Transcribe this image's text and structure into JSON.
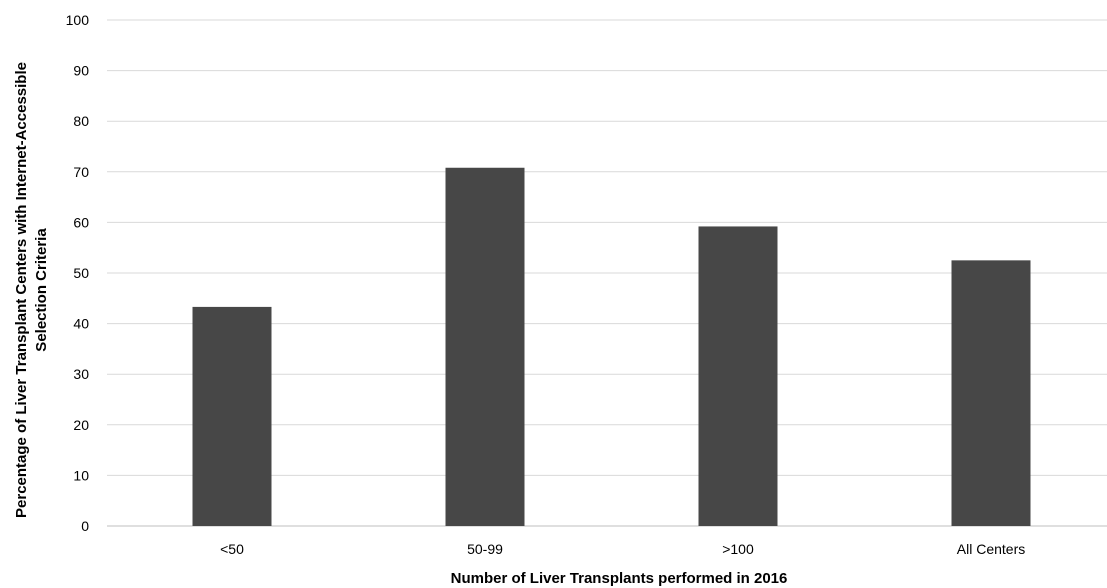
{
  "chart_data": {
    "type": "bar",
    "title": "",
    "categories": [
      "<50",
      "50-99",
      ">100",
      "All Centers"
    ],
    "values": [
      43.3,
      70.8,
      59.2,
      52.5
    ],
    "xlabel": "Number of Liver Transplants performed in 2016",
    "ylabel_lines": [
      "Percentage of Liver Transplant Centers with Internet-Accessible",
      "Selection Criteria"
    ],
    "ylim": [
      0,
      100
    ],
    "yticks": [
      "0",
      "10",
      "20",
      "30",
      "40",
      "50",
      "60",
      "70",
      "80",
      "90",
      "100"
    ],
    "grid": true,
    "legend": "none",
    "colors": {
      "bar": "#474747",
      "grid": "#d9d9d9",
      "axis": "#bfbfbf"
    }
  }
}
